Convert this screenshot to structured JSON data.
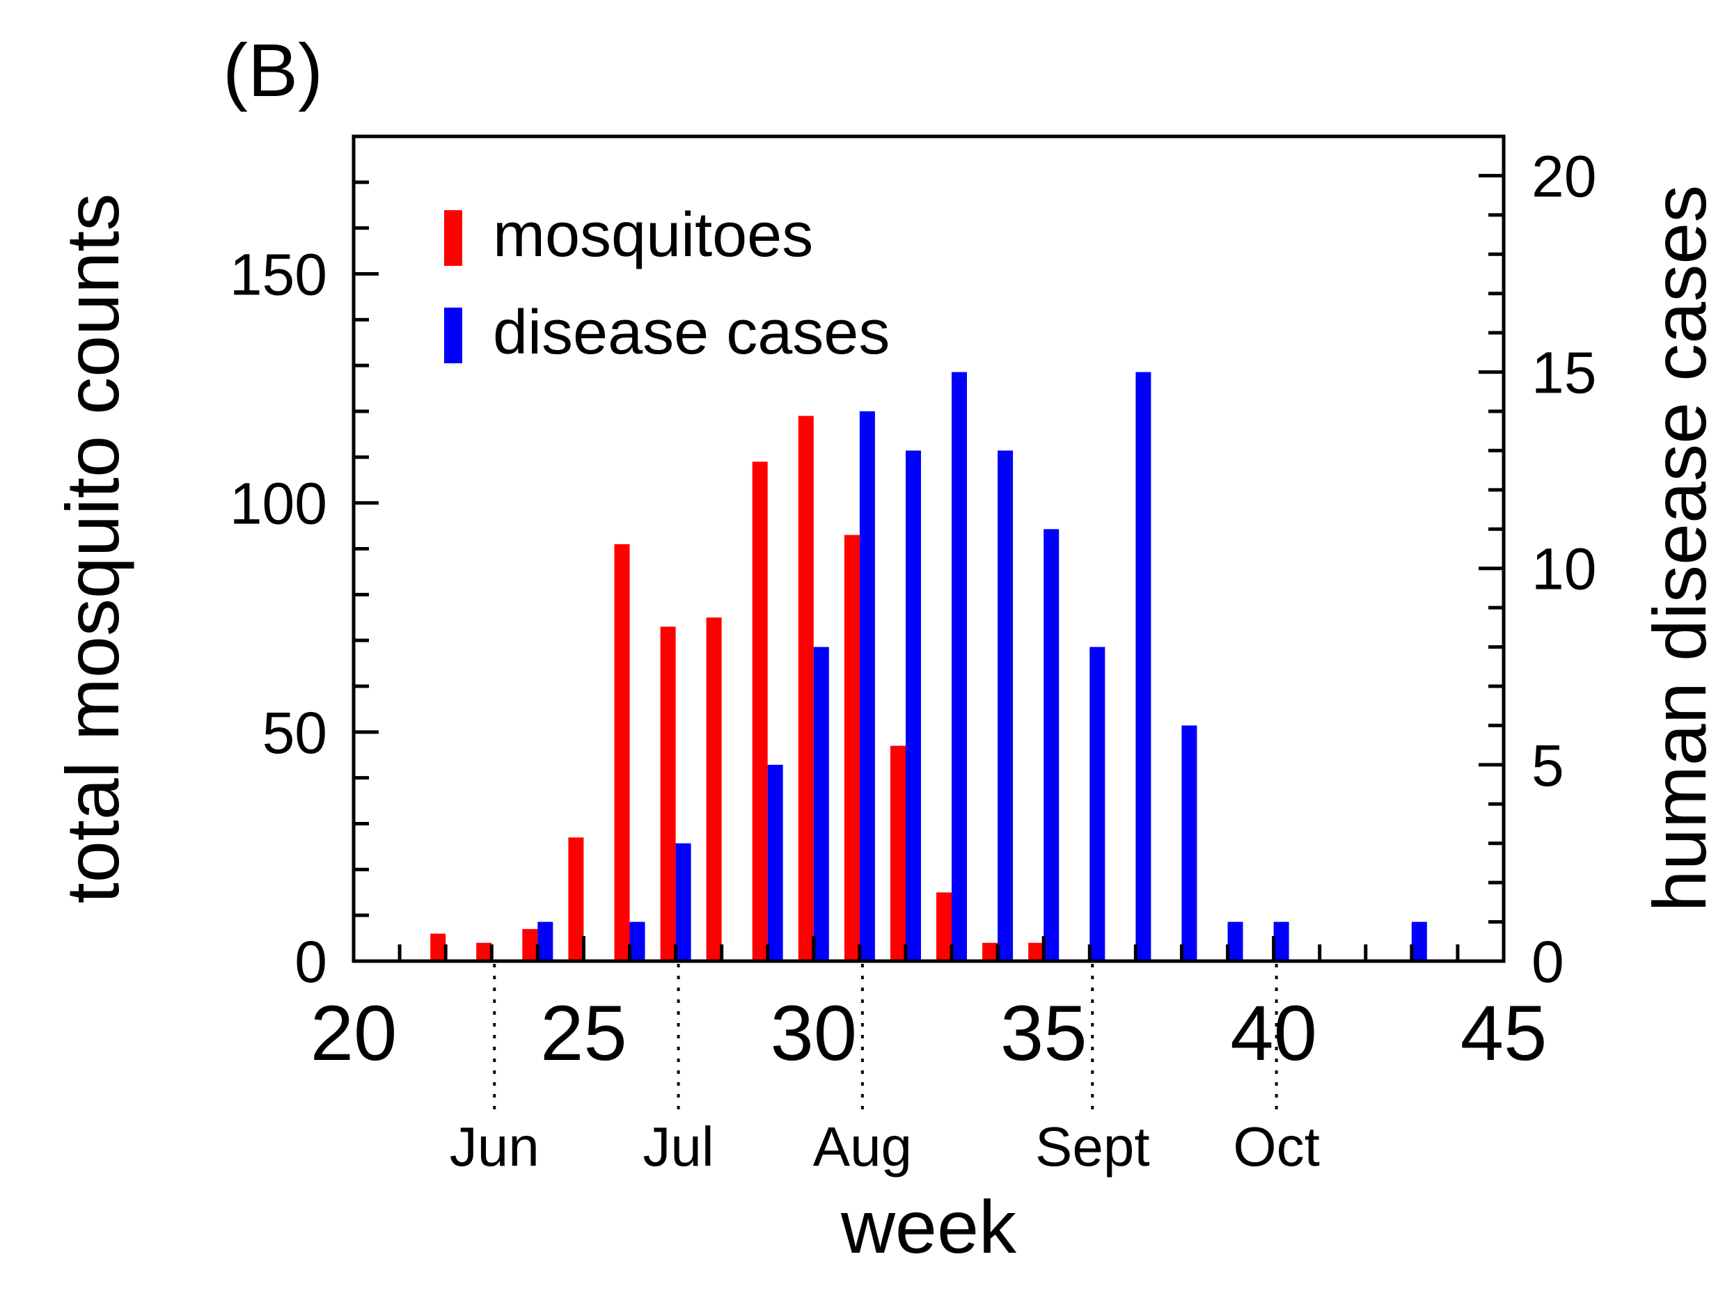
{
  "panel_label": "(B)",
  "colors": {
    "mosquitoes": "#ff0000",
    "cases": "#0000ff",
    "axis": "#000000"
  },
  "chart_data": {
    "type": "bar",
    "xlabel": "week",
    "ylabel_left": "total mosquito counts",
    "ylabel_right": "human disease cases",
    "xlim": [
      20,
      45
    ],
    "ylim_left": [
      0,
      180
    ],
    "ylim_right": [
      0,
      21
    ],
    "xticks": [
      20,
      25,
      30,
      35,
      40,
      45
    ],
    "xtick_labels": [
      "20",
      "25",
      "30",
      "35",
      "40",
      "45"
    ],
    "yticks_left": [
      0,
      50,
      100,
      150
    ],
    "ytick_labels_left": [
      "0",
      "50",
      "100",
      "150"
    ],
    "yticks_right": [
      0,
      5,
      10,
      15,
      20
    ],
    "ytick_labels_right": [
      "0",
      "5",
      "10",
      "15",
      "20"
    ],
    "months": [
      {
        "label": "Jun",
        "week": 23
      },
      {
        "label": "Jul",
        "week": 27
      },
      {
        "label": "Aug",
        "week": 31
      },
      {
        "label": "Sept",
        "week": 36
      },
      {
        "label": "Oct",
        "week": 40
      }
    ],
    "legend": [
      {
        "name": "mosquitoes",
        "color": "#ff0000"
      },
      {
        "name": "disease cases",
        "color": "#0000ff"
      }
    ],
    "series": [
      {
        "name": "mosquitoes",
        "axis": "left",
        "x": [
          22,
          23,
          24,
          25,
          26,
          27,
          28,
          29,
          30,
          31,
          32,
          33,
          34,
          35
        ],
        "values": [
          6,
          4,
          7,
          27,
          91,
          73,
          75,
          109,
          119,
          93,
          47,
          15,
          4,
          4
        ]
      },
      {
        "name": "disease cases",
        "axis": "right",
        "x": [
          24,
          26,
          27,
          29,
          30,
          31,
          32,
          33,
          34,
          35,
          36,
          37,
          38,
          39,
          40,
          43
        ],
        "values": [
          1,
          1,
          3,
          5,
          8,
          14,
          13,
          15,
          13,
          11,
          8,
          15,
          6,
          1,
          1,
          1
        ]
      }
    ]
  }
}
